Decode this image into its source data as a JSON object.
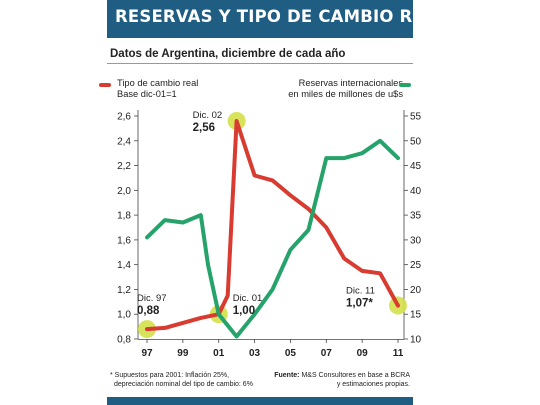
{
  "title": "RESERVAS Y TIPO DE CAMBIO REAL",
  "subtitle": "Datos de Argentina, diciembre de cada año",
  "legend": {
    "left_line1": "Tipo de cambio real",
    "left_line2": "Base dic-01=1",
    "right_line1": "Reservas internacionales",
    "right_line2": "en miles de millones de u$s"
  },
  "footnote": {
    "line1": "* Supuestos para 2001: Inflación 25%,",
    "line2": "depreciación nominal del tipo de cambio: 6%"
  },
  "source": {
    "label": "Fuente:",
    "line1": " M&S Consultores en base a BCRA",
    "line2": "y estimaciones propias."
  },
  "colors": {
    "header": "#1f5d82",
    "red_series": "#d83b2f",
    "green_series": "#25a36a",
    "highlight": "#d4e04a"
  },
  "chart_data": {
    "type": "line",
    "x_ticks": [
      "97",
      "99",
      "01",
      "03",
      "05",
      "07",
      "09",
      "11"
    ],
    "left_axis": {
      "ylim": [
        0.8,
        2.6
      ],
      "ticks": [
        "0,8",
        "1,0",
        "1,2",
        "1,4",
        "1,6",
        "1,8",
        "2,0",
        "2,2",
        "2,4",
        "2,6"
      ]
    },
    "right_axis": {
      "ylim": [
        10,
        55
      ],
      "ticks": [
        "10",
        "15",
        "20",
        "25",
        "30",
        "35",
        "40",
        "45",
        "50",
        "55"
      ]
    },
    "series": [
      {
        "name": "Tipo de cambio real",
        "axis": "left",
        "x": [
          1997.0,
          1998.0,
          1999.0,
          2000.0,
          2001.0,
          2001.5,
          2002.0,
          2003.0,
          2004.0,
          2005.0,
          2006.0,
          2007.0,
          2008.0,
          2009.0,
          2010.0,
          2011.0
        ],
        "values": [
          0.88,
          0.89,
          0.93,
          0.97,
          1.0,
          1.15,
          2.56,
          2.12,
          2.08,
          1.96,
          1.85,
          1.7,
          1.45,
          1.35,
          1.33,
          1.07
        ]
      },
      {
        "name": "Reservas internacionales",
        "axis": "right",
        "x": [
          1997.0,
          1998.0,
          1999.0,
          2000.0,
          2000.4,
          2001.0,
          2002.0,
          2003.0,
          2004.0,
          2005.0,
          2006.0,
          2007.0,
          2008.0,
          2009.0,
          2010.0,
          2011.0
        ],
        "values": [
          30.5,
          34.0,
          33.5,
          35.0,
          25.0,
          15.0,
          10.5,
          15.0,
          20.0,
          28.0,
          32.0,
          46.5,
          46.5,
          47.5,
          50.0,
          46.5
        ]
      }
    ],
    "annotations": [
      {
        "x": 1997,
        "y": 0.88,
        "label_top": "Dic. 97",
        "label_bottom": "0,88"
      },
      {
        "x": 2001,
        "y": 1.0,
        "label_top": "Dic. 01",
        "label_bottom": "1,00"
      },
      {
        "x": 2002,
        "y": 2.56,
        "label_top": "Dic. 02",
        "label_bottom": "2,56"
      },
      {
        "x": 2011,
        "y": 1.07,
        "label_top": "Dic. 11",
        "label_bottom": "1,07*"
      }
    ]
  }
}
